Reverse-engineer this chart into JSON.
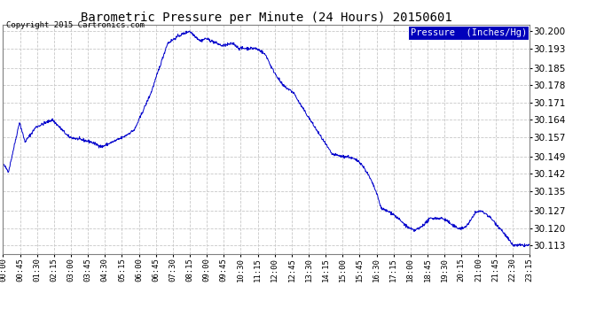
{
  "title": "Barometric Pressure per Minute (24 Hours) 20150601",
  "copyright": "Copyright 2015 Cartronics.com",
  "legend_label": "Pressure  (Inches/Hg)",
  "line_color": "#0000cc",
  "background_color": "#ffffff",
  "grid_color": "#c8c8c8",
  "ylim": [
    30.1095,
    30.2025
  ],
  "yticks": [
    30.113,
    30.12,
    30.127,
    30.135,
    30.142,
    30.149,
    30.157,
    30.164,
    30.171,
    30.178,
    30.185,
    30.193,
    30.2
  ],
  "xtick_labels": [
    "00:00",
    "00:45",
    "01:30",
    "02:15",
    "03:00",
    "03:45",
    "04:30",
    "05:15",
    "06:00",
    "06:45",
    "07:30",
    "08:15",
    "09:00",
    "09:45",
    "10:30",
    "11:15",
    "12:00",
    "12:45",
    "13:30",
    "14:15",
    "15:00",
    "15:45",
    "16:30",
    "17:15",
    "18:00",
    "18:45",
    "19:30",
    "20:15",
    "21:00",
    "21:45",
    "22:30",
    "23:15"
  ],
  "waypoints_t": [
    0.0,
    0.25,
    0.75,
    1.0,
    1.5,
    2.25,
    3.0,
    3.5,
    4.0,
    4.5,
    5.0,
    5.5,
    6.0,
    6.75,
    7.5,
    8.0,
    8.25,
    8.5,
    8.75,
    9.0,
    9.25,
    9.5,
    9.75,
    10.0,
    10.5,
    10.75,
    11.0,
    11.25,
    11.5,
    11.75,
    12.0,
    12.25,
    12.75,
    13.25,
    13.5,
    14.0,
    14.5,
    15.0,
    15.5,
    15.75,
    16.25,
    16.5,
    16.75,
    17.0,
    17.25,
    17.5,
    17.75,
    18.0,
    18.25,
    18.5,
    18.75,
    19.0,
    19.25,
    19.5,
    19.75,
    20.0,
    20.25,
    20.5,
    20.75,
    21.0,
    21.25,
    21.5,
    21.75,
    22.0,
    22.25,
    22.75,
    23.0,
    23.25
  ],
  "waypoints_p": [
    30.146,
    30.143,
    30.163,
    30.155,
    30.161,
    30.164,
    30.157,
    30.156,
    30.155,
    30.153,
    30.155,
    30.157,
    30.16,
    30.175,
    30.195,
    30.198,
    30.199,
    30.2,
    30.198,
    30.196,
    30.197,
    30.196,
    30.195,
    30.194,
    30.195,
    30.193,
    30.193,
    30.193,
    30.193,
    30.192,
    30.19,
    30.185,
    30.178,
    30.175,
    30.171,
    30.164,
    30.157,
    30.15,
    30.149,
    30.149,
    30.147,
    30.144,
    30.14,
    30.135,
    30.128,
    30.127,
    30.126,
    30.124,
    30.122,
    30.12,
    30.119,
    30.12,
    30.122,
    30.124,
    30.124,
    30.124,
    30.123,
    30.121,
    30.12,
    30.12,
    30.122,
    30.126,
    30.127,
    30.126,
    30.124,
    30.119,
    30.116,
    30.113
  ]
}
